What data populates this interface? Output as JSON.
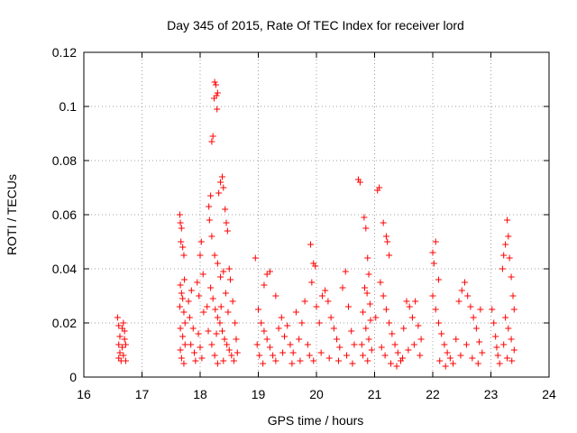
{
  "chart_data": {
    "type": "scatter",
    "title": "Day 345 of 2015, Rate Of TEC Index for receiver lord",
    "xlabel": "GPS time / hours",
    "ylabel": "ROTI / TECUs",
    "xlim": [
      16,
      24
    ],
    "ylim": [
      0,
      0.12
    ],
    "xticks": [
      "16",
      "17",
      "18",
      "19",
      "20",
      "21",
      "22",
      "23",
      "24"
    ],
    "yticks": [
      "0",
      "0.02",
      "0.04",
      "0.06",
      "0.08",
      "0.1",
      "0.12"
    ],
    "xtick_values": [
      16,
      17,
      18,
      19,
      20,
      21,
      22,
      23,
      24
    ],
    "ytick_values": [
      0,
      0.02,
      0.04,
      0.06,
      0.08,
      0.1,
      0.12
    ],
    "grid": true,
    "marker": "+",
    "color": "#ff0000",
    "series": [
      {
        "name": "",
        "points": [
          [
            16.58,
            0.022
          ],
          [
            16.6,
            0.019
          ],
          [
            16.62,
            0.015
          ],
          [
            16.6,
            0.012
          ],
          [
            16.62,
            0.009
          ],
          [
            16.6,
            0.007
          ],
          [
            16.64,
            0.006
          ],
          [
            16.66,
            0.018
          ],
          [
            16.68,
            0.02
          ],
          [
            16.66,
            0.011
          ],
          [
            16.7,
            0.014
          ],
          [
            16.68,
            0.008
          ],
          [
            16.72,
            0.006
          ],
          [
            16.7,
            0.017
          ],
          [
            16.72,
            0.012
          ],
          [
            17.65,
            0.06
          ],
          [
            17.66,
            0.057
          ],
          [
            17.68,
            0.055
          ],
          [
            17.67,
            0.05
          ],
          [
            17.7,
            0.048
          ],
          [
            17.72,
            0.045
          ],
          [
            17.73,
            0.036
          ],
          [
            17.66,
            0.034
          ],
          [
            17.68,
            0.031
          ],
          [
            17.7,
            0.029
          ],
          [
            17.65,
            0.026
          ],
          [
            17.72,
            0.024
          ],
          [
            17.74,
            0.02
          ],
          [
            17.66,
            0.018
          ],
          [
            17.7,
            0.015
          ],
          [
            17.74,
            0.012
          ],
          [
            17.66,
            0.01
          ],
          [
            17.68,
            0.007
          ],
          [
            17.72,
            0.005
          ],
          [
            17.8,
            0.028
          ],
          [
            17.85,
            0.032
          ],
          [
            17.82,
            0.022
          ],
          [
            17.88,
            0.018
          ],
          [
            17.84,
            0.012
          ],
          [
            17.9,
            0.009
          ],
          [
            17.92,
            0.006
          ],
          [
            17.95,
            0.035
          ],
          [
            17.98,
            0.03
          ],
          [
            18.0,
            0.045
          ],
          [
            18.02,
            0.05
          ],
          [
            18.05,
            0.038
          ],
          [
            17.97,
            0.016
          ],
          [
            18.0,
            0.011
          ],
          [
            18.03,
            0.007
          ],
          [
            18.06,
            0.024
          ],
          [
            18.15,
            0.063
          ],
          [
            18.18,
            0.067
          ],
          [
            18.2,
            0.087
          ],
          [
            18.22,
            0.089
          ],
          [
            18.24,
            0.103
          ],
          [
            18.25,
            0.109
          ],
          [
            18.27,
            0.108
          ],
          [
            18.28,
            0.104
          ],
          [
            18.3,
            0.105
          ],
          [
            18.29,
            0.099
          ],
          [
            18.32,
            0.068
          ],
          [
            18.35,
            0.072
          ],
          [
            18.38,
            0.074
          ],
          [
            18.4,
            0.07
          ],
          [
            18.43,
            0.062
          ],
          [
            18.45,
            0.057
          ],
          [
            18.47,
            0.054
          ],
          [
            18.16,
            0.058
          ],
          [
            18.2,
            0.052
          ],
          [
            18.25,
            0.045
          ],
          [
            18.3,
            0.042
          ],
          [
            18.35,
            0.037
          ],
          [
            18.4,
            0.039
          ],
          [
            18.5,
            0.04
          ],
          [
            18.52,
            0.036
          ],
          [
            18.18,
            0.033
          ],
          [
            18.22,
            0.029
          ],
          [
            18.26,
            0.025
          ],
          [
            18.3,
            0.022
          ],
          [
            18.34,
            0.02
          ],
          [
            18.38,
            0.017
          ],
          [
            18.42,
            0.014
          ],
          [
            18.46,
            0.012
          ],
          [
            18.5,
            0.01
          ],
          [
            18.54,
            0.008
          ],
          [
            18.58,
            0.006
          ],
          [
            18.14,
            0.017
          ],
          [
            18.2,
            0.012
          ],
          [
            18.25,
            0.008
          ],
          [
            18.3,
            0.005
          ],
          [
            18.36,
            0.026
          ],
          [
            18.44,
            0.031
          ],
          [
            18.56,
            0.028
          ],
          [
            18.6,
            0.02
          ],
          [
            18.62,
            0.014
          ],
          [
            18.64,
            0.009
          ],
          [
            18.12,
            0.026
          ],
          [
            18.28,
            0.016
          ],
          [
            18.4,
            0.006
          ],
          [
            18.48,
            0.024
          ],
          [
            18.95,
            0.044
          ],
          [
            19.1,
            0.034
          ],
          [
            19.15,
            0.038
          ],
          [
            19.2,
            0.039
          ],
          [
            19.3,
            0.03
          ],
          [
            19.0,
            0.025
          ],
          [
            19.05,
            0.02
          ],
          [
            19.1,
            0.017
          ],
          [
            19.15,
            0.014
          ],
          [
            19.2,
            0.011
          ],
          [
            19.25,
            0.008
          ],
          [
            19.3,
            0.006
          ],
          [
            19.35,
            0.018
          ],
          [
            19.4,
            0.022
          ],
          [
            18.98,
            0.012
          ],
          [
            19.02,
            0.008
          ],
          [
            19.08,
            0.005
          ],
          [
            19.45,
            0.015
          ],
          [
            19.5,
            0.019
          ],
          [
            19.55,
            0.012
          ],
          [
            19.6,
            0.009
          ],
          [
            19.65,
            0.024
          ],
          [
            19.7,
            0.014
          ],
          [
            19.75,
            0.02
          ],
          [
            19.8,
            0.028
          ],
          [
            19.85,
            0.012
          ],
          [
            19.9,
            0.049
          ],
          [
            19.95,
            0.042
          ],
          [
            19.98,
            0.041
          ],
          [
            19.92,
            0.035
          ],
          [
            20.0,
            0.026
          ],
          [
            20.05,
            0.02
          ],
          [
            20.1,
            0.03
          ],
          [
            20.15,
            0.032
          ],
          [
            20.2,
            0.028
          ],
          [
            20.25,
            0.022
          ],
          [
            20.3,
            0.018
          ],
          [
            20.35,
            0.014
          ],
          [
            20.4,
            0.011
          ],
          [
            20.45,
            0.033
          ],
          [
            20.5,
            0.039
          ],
          [
            20.55,
            0.026
          ],
          [
            20.6,
            0.017
          ],
          [
            20.65,
            0.012
          ],
          [
            19.88,
            0.008
          ],
          [
            19.95,
            0.006
          ],
          [
            20.08,
            0.009
          ],
          [
            20.22,
            0.007
          ],
          [
            20.38,
            0.006
          ],
          [
            20.52,
            0.008
          ],
          [
            20.62,
            0.005
          ],
          [
            19.72,
            0.006
          ],
          [
            19.58,
            0.005
          ],
          [
            19.42,
            0.009
          ],
          [
            20.72,
            0.073
          ],
          [
            20.75,
            0.072
          ],
          [
            20.82,
            0.059
          ],
          [
            20.85,
            0.055
          ],
          [
            20.88,
            0.044
          ],
          [
            20.9,
            0.038
          ],
          [
            20.83,
            0.033
          ],
          [
            20.87,
            0.031
          ],
          [
            20.92,
            0.027
          ],
          [
            20.8,
            0.024
          ],
          [
            20.85,
            0.018
          ],
          [
            20.9,
            0.014
          ],
          [
            20.95,
            0.01
          ],
          [
            20.8,
            0.008
          ],
          [
            20.88,
            0.006
          ],
          [
            20.78,
            0.012
          ],
          [
            20.93,
            0.021
          ],
          [
            21.05,
            0.069
          ],
          [
            21.08,
            0.07
          ],
          [
            21.15,
            0.057
          ],
          [
            21.2,
            0.052
          ],
          [
            21.22,
            0.05
          ],
          [
            21.25,
            0.045
          ],
          [
            21.1,
            0.035
          ],
          [
            21.15,
            0.03
          ],
          [
            21.2,
            0.025
          ],
          [
            21.25,
            0.02
          ],
          [
            21.3,
            0.016
          ],
          [
            21.35,
            0.012
          ],
          [
            21.4,
            0.009
          ],
          [
            21.45,
            0.006
          ],
          [
            21.5,
            0.018
          ],
          [
            21.55,
            0.028
          ],
          [
            21.6,
            0.026
          ],
          [
            21.65,
            0.022
          ],
          [
            21.7,
            0.028
          ],
          [
            21.75,
            0.019
          ],
          [
            21.8,
            0.014
          ],
          [
            21.12,
            0.011
          ],
          [
            21.18,
            0.008
          ],
          [
            21.28,
            0.005
          ],
          [
            21.38,
            0.004
          ],
          [
            21.48,
            0.007
          ],
          [
            21.58,
            0.01
          ],
          [
            21.68,
            0.012
          ],
          [
            21.78,
            0.008
          ],
          [
            21.02,
            0.022
          ],
          [
            22.0,
            0.046
          ],
          [
            22.05,
            0.05
          ],
          [
            22.02,
            0.042
          ],
          [
            22.1,
            0.036
          ],
          [
            22.0,
            0.03
          ],
          [
            22.05,
            0.025
          ],
          [
            22.1,
            0.02
          ],
          [
            22.15,
            0.016
          ],
          [
            22.2,
            0.012
          ],
          [
            22.25,
            0.009
          ],
          [
            22.3,
            0.007
          ],
          [
            22.35,
            0.005
          ],
          [
            22.4,
            0.014
          ],
          [
            22.45,
            0.028
          ],
          [
            22.5,
            0.032
          ],
          [
            22.55,
            0.035
          ],
          [
            22.6,
            0.03
          ],
          [
            22.65,
            0.026
          ],
          [
            22.7,
            0.022
          ],
          [
            22.75,
            0.018
          ],
          [
            22.8,
            0.013
          ],
          [
            22.85,
            0.009
          ],
          [
            22.12,
            0.006
          ],
          [
            22.22,
            0.004
          ],
          [
            22.48,
            0.008
          ],
          [
            22.58,
            0.012
          ],
          [
            22.68,
            0.007
          ],
          [
            22.78,
            0.005
          ],
          [
            22.82,
            0.025
          ],
          [
            23.02,
            0.025
          ],
          [
            23.05,
            0.02
          ],
          [
            23.08,
            0.015
          ],
          [
            23.1,
            0.011
          ],
          [
            23.12,
            0.008
          ],
          [
            23.15,
            0.005
          ],
          [
            23.2,
            0.04
          ],
          [
            23.22,
            0.045
          ],
          [
            23.25,
            0.049
          ],
          [
            23.28,
            0.058
          ],
          [
            23.3,
            0.052
          ],
          [
            23.32,
            0.044
          ],
          [
            23.35,
            0.037
          ],
          [
            23.38,
            0.03
          ],
          [
            23.4,
            0.025
          ],
          [
            23.25,
            0.022
          ],
          [
            23.3,
            0.018
          ],
          [
            23.35,
            0.014
          ],
          [
            23.4,
            0.01
          ],
          [
            23.28,
            0.007
          ],
          [
            23.36,
            0.006
          ],
          [
            23.22,
            0.012
          ]
        ]
      }
    ]
  }
}
